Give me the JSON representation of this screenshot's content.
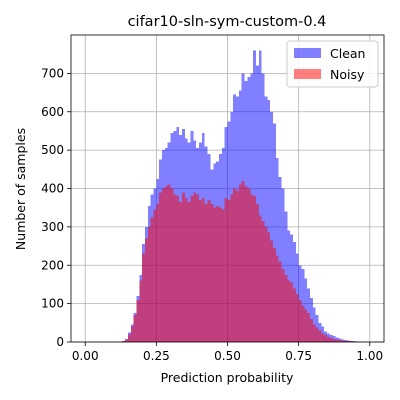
{
  "chart_data": {
    "type": "bar",
    "title": "cifar10-sln-sym-custom-0.4",
    "xlabel": "Prediction probability",
    "ylabel": "Number of samples",
    "xlim": [
      -0.05,
      1.05
    ],
    "ylim": [
      0,
      800
    ],
    "xticks": [
      "0.00",
      "0.25",
      "0.50",
      "0.75",
      "1.00"
    ],
    "yticks": [
      "0",
      "100",
      "200",
      "300",
      "400",
      "500",
      "600",
      "700"
    ],
    "grid": true,
    "legend_position": "top-right",
    "bins": {
      "start": 0.0,
      "width": 0.01,
      "count": 100
    },
    "series": [
      {
        "name": "Clean",
        "color": "#0000ff",
        "alpha": 0.5,
        "values": [
          0,
          0,
          0,
          0,
          0,
          0,
          0,
          0,
          0,
          0,
          0,
          0,
          0,
          3,
          8,
          25,
          45,
          75,
          120,
          175,
          255,
          300,
          355,
          385,
          400,
          425,
          475,
          500,
          505,
          520,
          545,
          550,
          560,
          540,
          555,
          530,
          520,
          550,
          525,
          505,
          520,
          545,
          510,
          490,
          450,
          465,
          470,
          490,
          505,
          560,
          575,
          600,
          645,
          640,
          655,
          700,
          680,
          690,
          700,
          760,
          720,
          760,
          700,
          640,
          630,
          600,
          570,
          480,
          430,
          400,
          340,
          290,
          280,
          260,
          230,
          200,
          190,
          165,
          140,
          115,
          90,
          70,
          50,
          40,
          28,
          22,
          18,
          15,
          12,
          9,
          7,
          5,
          4,
          3,
          2,
          1,
          1,
          0,
          0,
          0
        ]
      },
      {
        "name": "Noisy",
        "color": "#ff0000",
        "alpha": 0.5,
        "values": [
          0,
          0,
          0,
          0,
          0,
          0,
          0,
          0,
          0,
          0,
          0,
          0,
          0,
          3,
          6,
          20,
          40,
          70,
          110,
          160,
          230,
          270,
          300,
          325,
          345,
          360,
          390,
          400,
          405,
          410,
          400,
          385,
          380,
          365,
          390,
          375,
          365,
          380,
          390,
          385,
          370,
          375,
          360,
          370,
          360,
          350,
          355,
          350,
          345,
          375,
          370,
          385,
          400,
          395,
          410,
          420,
          405,
          400,
          385,
          380,
          360,
          330,
          315,
          300,
          285,
          265,
          245,
          225,
          210,
          190,
          175,
          160,
          155,
          140,
          125,
          110,
          95,
          85,
          75,
          60,
          45,
          38,
          30,
          22,
          18,
          13,
          10,
          8,
          6,
          5,
          4,
          3,
          2,
          2,
          1,
          1,
          0,
          0,
          0,
          0
        ]
      }
    ]
  }
}
